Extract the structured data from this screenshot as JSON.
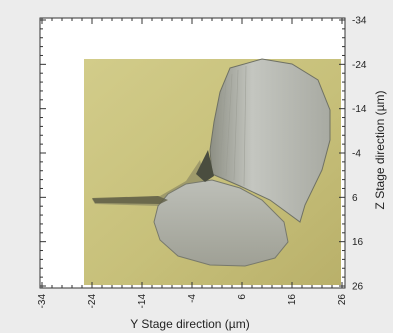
{
  "chart_data": {
    "type": "heatmap",
    "title": "",
    "xlabel": "Y Stage direction (µm)",
    "ylabel": "Z Stage direction (µm)",
    "x_ticks": [
      -34,
      -24,
      -14,
      -4,
      6,
      16,
      26
    ],
    "x_tick_labels": [
      "-34",
      "-24",
      "-14",
      "-4",
      "6",
      "16",
      "26"
    ],
    "y_ticks": [
      -34,
      -24,
      -14,
      -4,
      6,
      16,
      26
    ],
    "y_tick_labels": [
      "-34",
      "-24",
      "-14",
      "-4",
      "6",
      "16",
      "26"
    ],
    "xlim": [
      -34,
      26
    ],
    "ylim": [
      -34,
      26
    ],
    "y_axis_side": "right",
    "y_axis_direction": "top-to-bottom",
    "grid": false,
    "legend": "none",
    "colors": {
      "background": "#ececec",
      "plot_area": "#ffffff",
      "image_base": "#c9c27d",
      "grain_light": "#b9bab3",
      "grain_dark": "#6d705f"
    }
  }
}
